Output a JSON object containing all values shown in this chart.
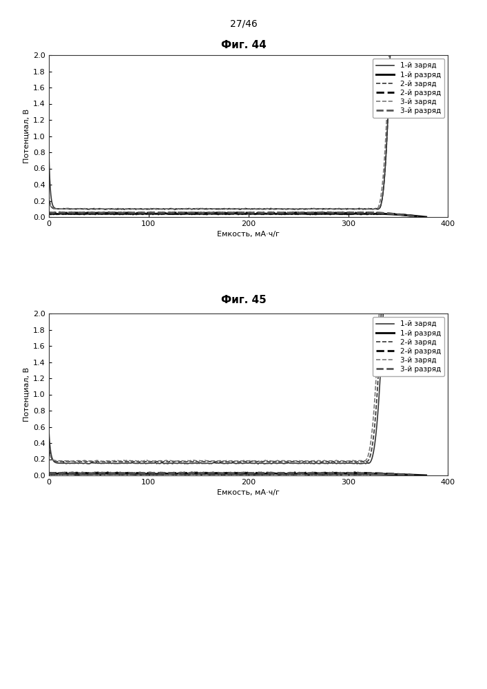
{
  "page_label": "27/46",
  "fig44_title": "Фиг. 44",
  "fig45_title": "Фиг. 45",
  "xlabel": "Емкость, мА·ч/г",
  "ylabel": "Потенциал, В",
  "xlim": [
    0,
    400
  ],
  "ylim": [
    0,
    2
  ],
  "yticks": [
    0,
    0.2,
    0.4,
    0.6,
    0.8,
    1.0,
    1.2,
    1.4,
    1.6,
    1.8,
    2.0
  ],
  "xticks": [
    0,
    100,
    200,
    300,
    400
  ],
  "legend_entries": [
    {
      "label": "1-й заряд",
      "ls": "-",
      "lw": 1.2,
      "color": "#333333"
    },
    {
      "label": "1-й разряд",
      "ls": "-",
      "lw": 2.2,
      "color": "#111111"
    },
    {
      "label": "2-й заряд",
      "ls": "--",
      "lw": 1.2,
      "color": "#333333"
    },
    {
      "label": "2-й разряд",
      "ls": "--",
      "lw": 2.2,
      "color": "#111111"
    },
    {
      "label": "3-й заряд",
      "ls": "--",
      "lw": 1.2,
      "color": "#777777"
    },
    {
      "label": "3-й разряд",
      "ls": "--",
      "lw": 2.0,
      "color": "#555555"
    }
  ],
  "background_color": "#ffffff",
  "font_size": 8,
  "title_font_size": 11,
  "page_font_size": 10
}
